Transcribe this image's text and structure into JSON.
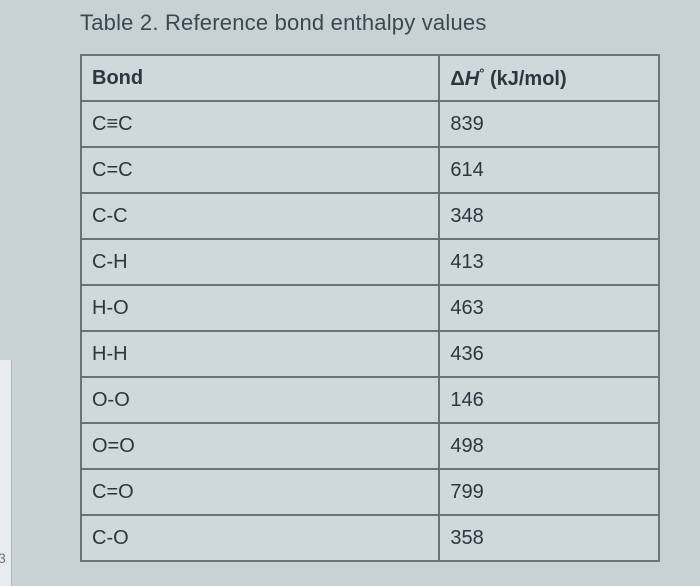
{
  "title": "Table 2. Reference bond enthalpy values",
  "page_number": "3",
  "table": {
    "type": "table",
    "background_color": "#cfd8da",
    "border_color": "#6a7478",
    "text_color": "#2a3640",
    "title_color": "#3a4852",
    "title_fontsize": 22,
    "cell_fontsize": 20,
    "columns": [
      {
        "label": "Bond",
        "width_pct": 62
      },
      {
        "label_html": "Δ<i>H</i>° (kJ/mol)",
        "label_plain": "ΔH° (kJ/mol)",
        "width_pct": 38
      }
    ],
    "rows": [
      {
        "bond": "C≡C",
        "value": "839"
      },
      {
        "bond": "C=C",
        "value": "614"
      },
      {
        "bond": "C-C",
        "value": "348"
      },
      {
        "bond": "C-H",
        "value": "413"
      },
      {
        "bond": "H-O",
        "value": "463"
      },
      {
        "bond": "H-H",
        "value": "436"
      },
      {
        "bond": "O-O",
        "value": "146"
      },
      {
        "bond": "O=O",
        "value": "498"
      },
      {
        "bond": "C=O",
        "value": "799"
      },
      {
        "bond": "C-O",
        "value": "358"
      }
    ]
  }
}
